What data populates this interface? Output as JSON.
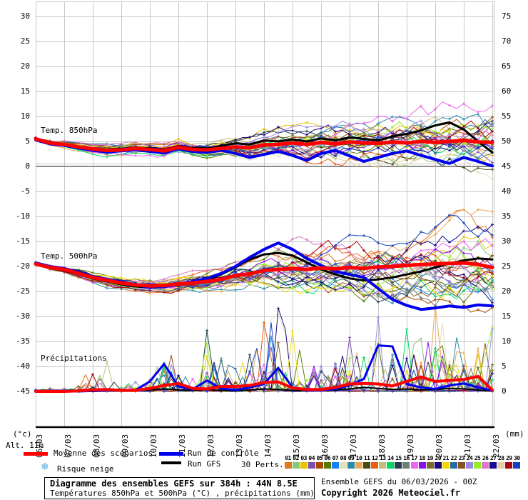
{
  "title_box": {
    "line1": "Diagramme des ensembles GEFS sur 384h : 44N 8.5E",
    "line2": "Températures 850hPa et 500hPa (°C) , précipitations (mm)"
  },
  "footer": {
    "run_info": "Ensemble GEFS du 06/03/2026 - 00Z",
    "copyright": "Copyright 2026 Meteociel.fr"
  },
  "labels": {
    "temp850": "Temp. 850hPa",
    "temp500": "Temp. 500hPa",
    "precip": "Précipitations"
  },
  "axis_labels": {
    "left_unit": "(°c)",
    "right_unit": "(mm)",
    "altitude": "Alt. 11m"
  },
  "legend": {
    "mean_label": "Moyenne des scénarios",
    "control_label": "Run de contrôle",
    "gfs_label": "Run GFS",
    "perts_label": "30 Perts.",
    "snow_label": "Risque neige",
    "snow_icon": "snowflake-icon",
    "mean_color": "#FF0000",
    "control_color": "#0000EE",
    "gfs_color": "#000000",
    "snow_color": "#58A8DF"
  },
  "chart_data": {
    "type": "line",
    "title": "Diagramme des ensembles GEFS sur 384h : 44N 8.5E",
    "x_dates": [
      "06/03",
      "07/03",
      "08/03",
      "09/03",
      "10/03",
      "11/03",
      "12/03",
      "13/03",
      "14/03",
      "15/03",
      "16/03",
      "17/03",
      "18/03",
      "19/03",
      "20/03",
      "21/03",
      "22/03"
    ],
    "points_per_day": 2,
    "left_axis": {
      "unit": "°C",
      "ticks": [
        30,
        25,
        20,
        15,
        10,
        5,
        0,
        -5,
        -10,
        -15,
        -20,
        -25,
        -30,
        -35,
        -40,
        -45
      ]
    },
    "right_axis": {
      "unit": "mm",
      "ticks": [
        75,
        70,
        65,
        60,
        55,
        50,
        45,
        40,
        35,
        30,
        25,
        20,
        15,
        10,
        5,
        0
      ]
    },
    "grid": true,
    "colors": {
      "grid": "#C8C8C8",
      "zero_line": "#8C8C8C",
      "axis": "#000000"
    },
    "members": {
      "count": 30,
      "colors": [
        "#E07820",
        "#88C878",
        "#E8C400",
        "#7A52AA",
        "#A84800",
        "#5A7800",
        "#1482F0",
        "#E4E0BE",
        "#2A8AA8",
        "#E8A858",
        "#4A4A14",
        "#F05A14",
        "#C4BC80",
        "#00D860",
        "#24404E",
        "#6E7E78",
        "#EE66EE",
        "#8812E8",
        "#7A6A28",
        "#1C0A78",
        "#F0D800",
        "#2A6AA0",
        "#8A5220",
        "#988AE8",
        "#96F028",
        "#D87AC8",
        "#1A0A90",
        "#E0D0A4",
        "#A80810",
        "#1242C4"
      ]
    },
    "panels": [
      {
        "id": "temp850",
        "label": "Temp. 850hPa",
        "series": {
          "mean": [
            5.5,
            4.7,
            4.4,
            3.9,
            3.5,
            3.2,
            3.3,
            3.6,
            3.4,
            3.1,
            3.8,
            3.4,
            3.3,
            3.6,
            3.9,
            3.7,
            4.3,
            4.4,
            4.7,
            4.4,
            4.8,
            4.5,
            4.9,
            4.7,
            4.6,
            4.9,
            4.7,
            5.0,
            4.8,
            5.0,
            5.2,
            4.9,
            4.8
          ],
          "control": [
            5.3,
            4.5,
            4.2,
            3.7,
            3.2,
            2.9,
            3.1,
            3.3,
            3.0,
            2.7,
            3.5,
            3.0,
            2.8,
            3.2,
            2.6,
            1.8,
            2.4,
            3.0,
            2.2,
            1.2,
            2.6,
            3.2,
            2.1,
            1.0,
            1.8,
            2.6,
            3.1,
            2.2,
            1.4,
            0.6,
            1.8,
            1.0,
            0.1
          ],
          "gfs": [
            5.6,
            4.8,
            4.5,
            4.0,
            3.6,
            3.4,
            3.5,
            3.8,
            3.6,
            3.3,
            4.0,
            3.7,
            3.6,
            4.1,
            4.6,
            4.4,
            5.2,
            5.0,
            5.4,
            5.0,
            5.6,
            5.2,
            5.8,
            5.5,
            5.2,
            6.0,
            6.5,
            7.2,
            8.2,
            8.8,
            7.4,
            5.0,
            2.8
          ]
        },
        "member_spread": [
          0.5,
          0.6,
          0.7,
          0.8,
          0.9,
          1.0,
          1.0,
          1.1,
          1.1,
          1.2,
          1.2,
          1.3,
          1.4,
          1.6,
          1.8,
          2.1,
          2.4,
          2.7,
          3.0,
          3.3,
          3.6,
          3.8,
          4.0,
          4.2,
          4.4,
          4.6,
          4.8,
          5.0,
          5.2,
          5.4,
          5.6,
          5.8,
          6.0
        ]
      },
      {
        "id": "temp500",
        "label": "Temp. 500hPa",
        "series": {
          "mean": [
            -19.5,
            -20.2,
            -20.6,
            -21.4,
            -22.2,
            -22.8,
            -23.3,
            -23.7,
            -23.9,
            -23.8,
            -23.5,
            -23.3,
            -23.0,
            -22.6,
            -21.8,
            -21.5,
            -20.8,
            -20.6,
            -20.4,
            -20.6,
            -20.3,
            -20.5,
            -20.2,
            -20.4,
            -20.1,
            -20.0,
            -19.8,
            -19.6,
            -19.5,
            -19.4,
            -19.3,
            -19.6,
            -20.2
          ],
          "control": [
            -19.3,
            -20.0,
            -20.4,
            -21.2,
            -22.0,
            -22.6,
            -23.1,
            -23.6,
            -24.2,
            -24.0,
            -23.6,
            -23.0,
            -22.4,
            -21.4,
            -20.0,
            -18.2,
            -16.6,
            -15.3,
            -16.6,
            -18.4,
            -19.8,
            -21.0,
            -21.6,
            -22.2,
            -24.4,
            -26.6,
            -27.8,
            -28.6,
            -28.3,
            -27.9,
            -28.2,
            -27.7,
            -27.9
          ],
          "gfs": [
            -19.6,
            -20.3,
            -20.8,
            -21.6,
            -22.4,
            -23.0,
            -23.6,
            -24.0,
            -24.2,
            -24.0,
            -23.7,
            -23.3,
            -22.8,
            -21.6,
            -20.2,
            -18.6,
            -17.6,
            -17.3,
            -17.8,
            -19.2,
            -20.6,
            -21.6,
            -22.4,
            -22.8,
            -22.6,
            -22.2,
            -21.6,
            -21.0,
            -20.2,
            -19.4,
            -18.8,
            -18.4,
            -18.6
          ]
        },
        "member_spread": [
          0.4,
          0.5,
          0.6,
          0.8,
          0.9,
          1.0,
          1.1,
          1.2,
          1.3,
          1.4,
          1.6,
          1.8,
          2.0,
          2.3,
          2.6,
          3.0,
          3.4,
          3.8,
          4.2,
          4.5,
          4.8,
          5.1,
          5.4,
          5.6,
          5.8,
          6.0,
          6.2,
          6.4,
          6.6,
          6.8,
          7.0,
          7.2,
          7.4
        ]
      },
      {
        "id": "precip",
        "label": "Précipitations",
        "series": {
          "mean": [
            0,
            0,
            0,
            0.1,
            0.3,
            0.4,
            0.2,
            0.2,
            0.6,
            1.2,
            1.6,
            0.6,
            0.5,
            1.0,
            1.0,
            1.2,
            1.8,
            1.9,
            0.7,
            0.4,
            0.4,
            0.8,
            1.5,
            1.6,
            1.5,
            1.1,
            2.0,
            2.9,
            2.0,
            2.2,
            2.4,
            3.0,
            0.3
          ],
          "control": [
            0,
            0,
            0,
            0,
            0.1,
            0.2,
            0.2,
            0.3,
            2.0,
            5.5,
            1.0,
            0.4,
            2.2,
            0.6,
            0.3,
            0.8,
            1.5,
            4.7,
            0.8,
            0.2,
            0.2,
            0.5,
            1.2,
            2.5,
            9.2,
            9.0,
            1.5,
            0.8,
            0.5,
            1.2,
            1.6,
            0.8,
            0.2
          ],
          "gfs": [
            0,
            0,
            0,
            0,
            0,
            0.1,
            0.1,
            0.2,
            0.3,
            0.5,
            0.3,
            0.2,
            0.4,
            0.2,
            0.1,
            0.3,
            0.5,
            0.4,
            0.2,
            0.1,
            0.2,
            0.3,
            0.5,
            0.8,
            0.6,
            0.4,
            0.5,
            0.3,
            0.4,
            0.6,
            0.5,
            0.3,
            0.1
          ]
        },
        "member_envelope": [
          0.2,
          0.4,
          0.6,
          1.0,
          6.0,
          9.0,
          3.0,
          2.0,
          6.0,
          7.5,
          9.0,
          7.0,
          14.0,
          8.0,
          6.0,
          13.0,
          18.0,
          26.0,
          20.0,
          12.0,
          8.0,
          10.0,
          12.0,
          14.0,
          18.0,
          12.0,
          16.0,
          12.0,
          28.0,
          14.0,
          13.0,
          16.0,
          34.0
        ]
      }
    ],
    "pert_numbers": [
      "01",
      "02",
      "03",
      "04",
      "05",
      "06",
      "07",
      "08",
      "09",
      "10",
      "11",
      "12",
      "13",
      "14",
      "15",
      "16",
      "17",
      "18",
      "19",
      "20",
      "21",
      "22",
      "23",
      "24",
      "25",
      "26",
      "27",
      "28",
      "29",
      "30"
    ]
  }
}
